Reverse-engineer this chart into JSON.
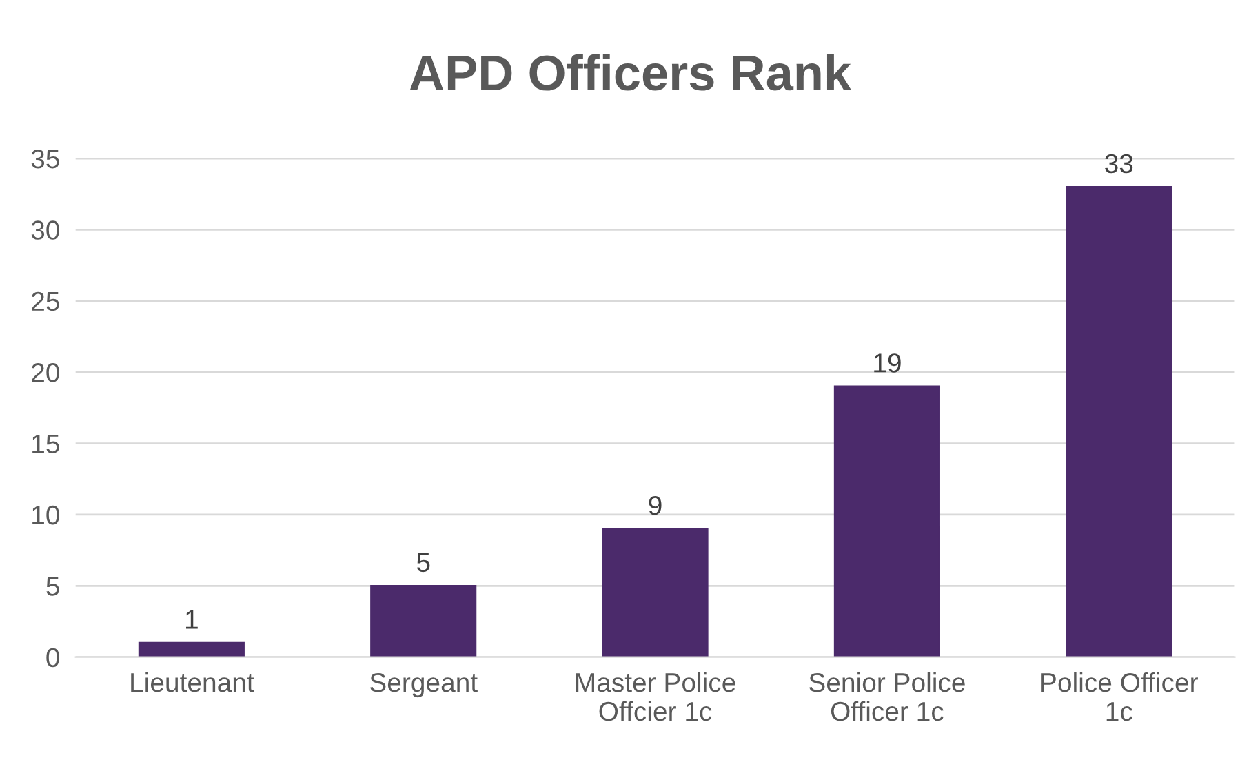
{
  "chart_data": {
    "type": "bar",
    "title": "APD Officers Rank",
    "categories": [
      "Lieutenant",
      "Sergeant",
      "Master Police Offcier 1c",
      "Senior Police Officer 1c",
      "Police Officer 1c"
    ],
    "values": [
      1,
      5,
      9,
      19,
      33
    ],
    "color": "#4b2a6b",
    "ylim": [
      0,
      35
    ],
    "yticks": [
      0,
      5,
      10,
      15,
      20,
      25,
      30,
      35
    ],
    "grid": "y",
    "data_labels": true
  }
}
